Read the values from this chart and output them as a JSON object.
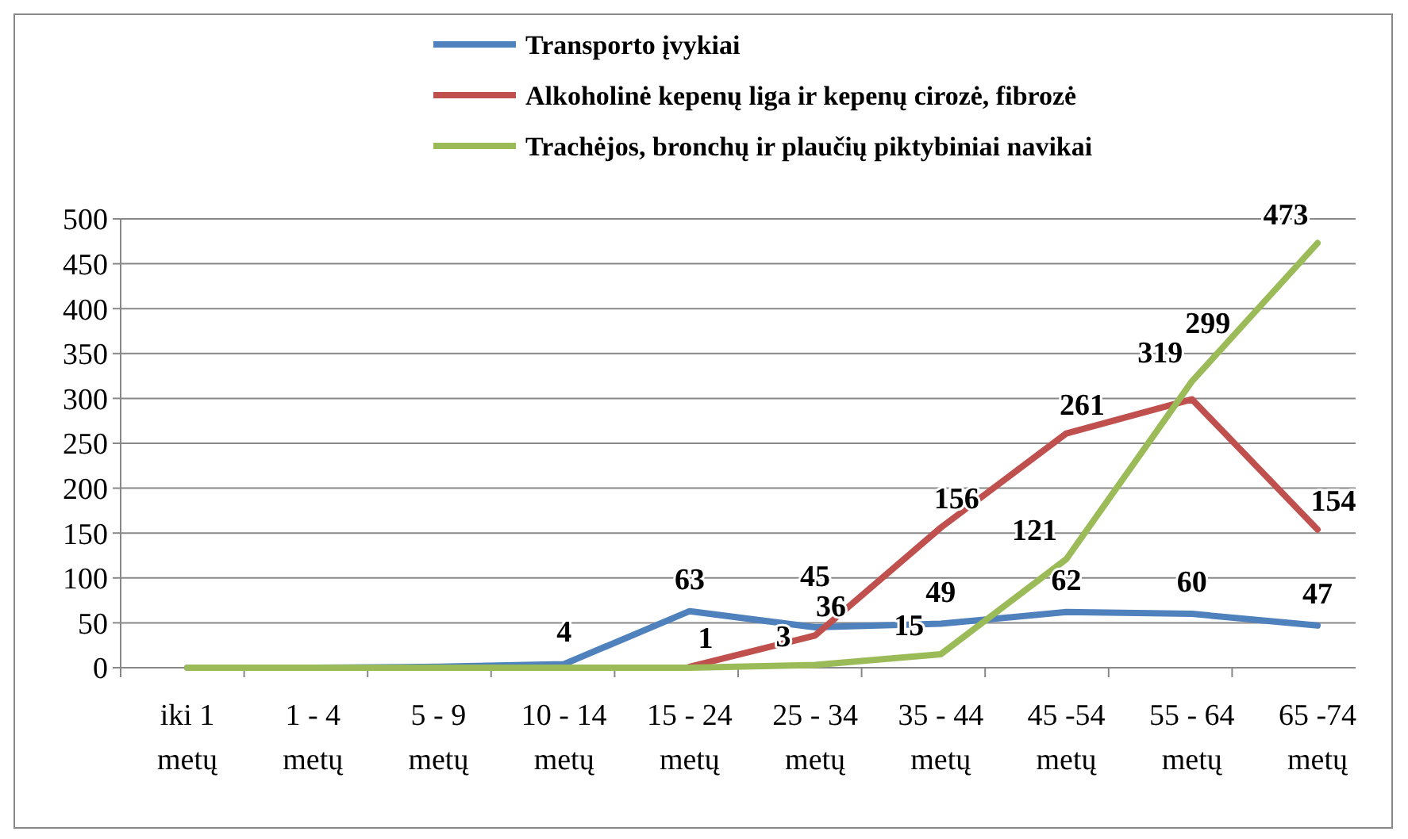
{
  "chart_data": {
    "type": "line",
    "categories": [
      "iki 1 metų",
      "1 - 4 metų",
      "5 - 9 metų",
      "10 - 14 metų",
      "15 - 24 metų",
      "25 - 34 metų",
      "35 - 44 metų",
      "45 -54 metų",
      "55 - 64 metų",
      "65 -74 metų"
    ],
    "series": [
      {
        "name": "Transporto įvykiai",
        "color": "#4f81bd",
        "values": [
          0,
          0,
          1,
          4,
          63,
          45,
          49,
          62,
          60,
          47
        ],
        "value_labels": [
          null,
          null,
          null,
          "4",
          "63",
          "45",
          "49",
          "62",
          "60",
          "47"
        ]
      },
      {
        "name": "Alkoholinė kepenų liga ir kepenų cirozė, fibrozė",
        "color": "#c0504d",
        "values": [
          null,
          null,
          null,
          null,
          1,
          36,
          156,
          261,
          299,
          154
        ],
        "value_labels": [
          null,
          null,
          null,
          null,
          "1",
          "36",
          "156",
          "261",
          "299",
          "154"
        ]
      },
      {
        "name": "Trachėjos, bronchų ir plaučių piktybiniai navikai",
        "color": "#9bbb59",
        "values": [
          0,
          0,
          0,
          0,
          0,
          3,
          15,
          121,
          319,
          473
        ],
        "value_labels": [
          null,
          null,
          null,
          null,
          null,
          "3",
          "15",
          "121",
          "319",
          "473"
        ]
      }
    ],
    "ylim": [
      0,
      500
    ],
    "yticks": [
      0,
      50,
      100,
      150,
      200,
      250,
      300,
      350,
      400,
      450,
      500
    ],
    "grid": "y",
    "legend": "top",
    "marker": "none",
    "line_style": "solid"
  }
}
